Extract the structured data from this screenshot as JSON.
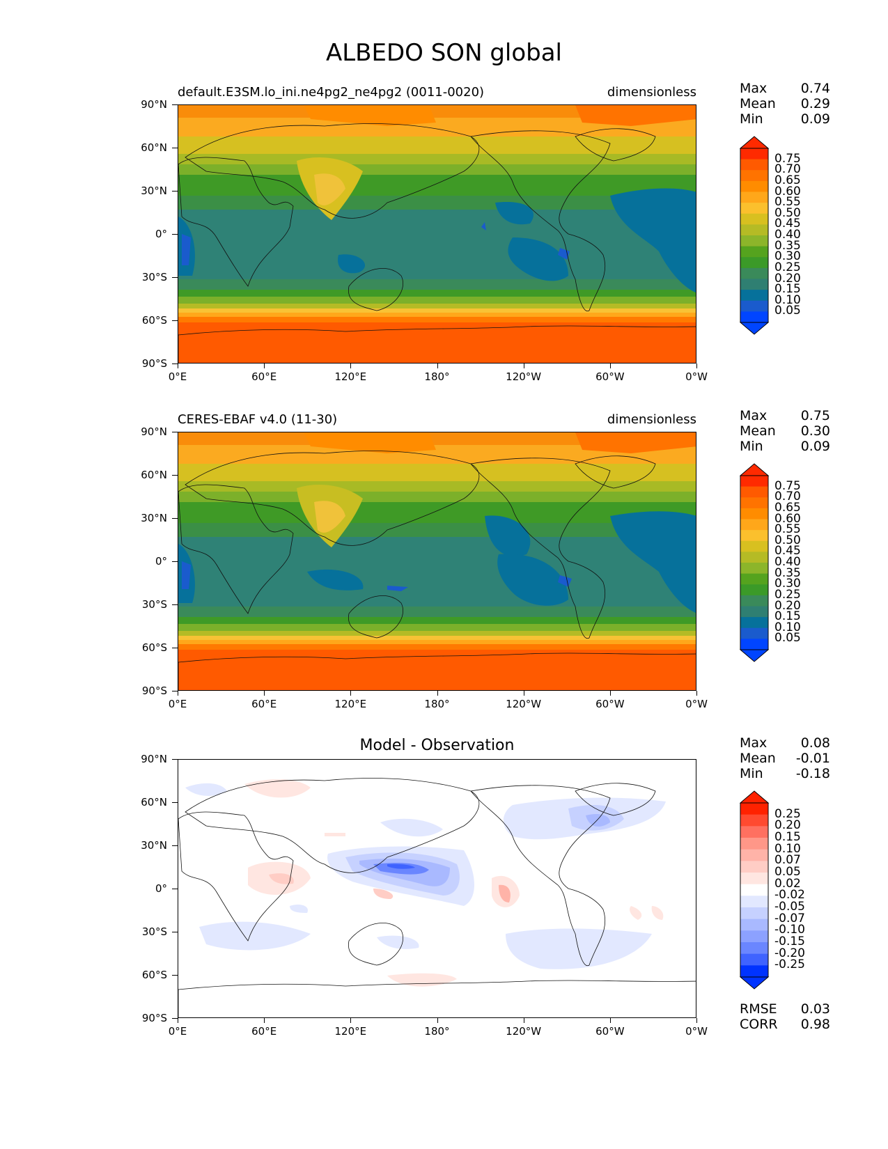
{
  "title": "ALBEDO SON global",
  "xticks": [
    "0°E",
    "60°E",
    "120°E",
    "180°",
    "120°W",
    "60°W",
    "0°W"
  ],
  "yticks": [
    "90°N",
    "60°N",
    "30°N",
    "0°",
    "30°S",
    "60°S",
    "90°S"
  ],
  "panels": [
    {
      "id": "model",
      "title_left": "default.E3SM.lo_ini.ne4pg2_ne4pg2 (0011-0020)",
      "title_right": "dimensionless",
      "title_center": "",
      "stats": [
        {
          "label": "Max",
          "value": "0.74"
        },
        {
          "label": "Mean",
          "value": "0.29"
        },
        {
          "label": "Min",
          "value": "0.09"
        }
      ],
      "extra_stats": [],
      "colorbar_labels": [
        "0.75",
        "0.70",
        "0.65",
        "0.60",
        "0.55",
        "0.50",
        "0.45",
        "0.40",
        "0.35",
        "0.30",
        "0.25",
        "0.20",
        "0.15",
        "0.10",
        "0.05"
      ],
      "colorbar_colors": [
        "#ff2a00",
        "#ff5a00",
        "#ff7300",
        "#ff8c00",
        "#ffa71a",
        "#fbc02d",
        "#d8c020",
        "#b5bb25",
        "#8cb52a",
        "#55a31e",
        "#3b9a28",
        "#3a8a5a",
        "#2f7f72",
        "#06719b",
        "#1a5bcd",
        "#0045ff"
      ]
    },
    {
      "id": "obs",
      "title_left": "CERES-EBAF v4.0 (11-30)",
      "title_right": "dimensionless",
      "title_center": "",
      "stats": [
        {
          "label": "Max",
          "value": "0.75"
        },
        {
          "label": "Mean",
          "value": "0.30"
        },
        {
          "label": "Min",
          "value": "0.09"
        }
      ],
      "extra_stats": [],
      "colorbar_labels": [
        "0.75",
        "0.70",
        "0.65",
        "0.60",
        "0.55",
        "0.50",
        "0.45",
        "0.40",
        "0.35",
        "0.30",
        "0.25",
        "0.20",
        "0.15",
        "0.10",
        "0.05"
      ],
      "colorbar_colors": [
        "#ff2a00",
        "#ff5a00",
        "#ff7300",
        "#ff8c00",
        "#ffa71a",
        "#fbc02d",
        "#d8c020",
        "#b5bb25",
        "#8cb52a",
        "#55a31e",
        "#3b9a28",
        "#3a8a5a",
        "#2f7f72",
        "#06719b",
        "#1a5bcd",
        "#0045ff"
      ]
    },
    {
      "id": "diff",
      "title_left": "",
      "title_right": "",
      "title_center": "Model - Observation",
      "stats": [
        {
          "label": "Max",
          "value": "0.08"
        },
        {
          "label": "Mean",
          "value": "-0.01"
        },
        {
          "label": "Min",
          "value": "-0.18"
        }
      ],
      "extra_stats": [
        {
          "label": "RMSE",
          "value": "0.03"
        },
        {
          "label": "CORR",
          "value": "0.98"
        }
      ],
      "colorbar_labels": [
        "0.25",
        "0.20",
        "0.15",
        "0.10",
        "0.07",
        "0.05",
        "0.02",
        "-0.02",
        "-0.05",
        "-0.07",
        "-0.10",
        "-0.15",
        "-0.20",
        "-0.25"
      ],
      "colorbar_colors": [
        "#ff2200",
        "#ff4a30",
        "#ff7060",
        "#ff9788",
        "#ffb3a8",
        "#ffcdc5",
        "#ffe6e1",
        "#ffffff",
        "#e2e8ff",
        "#c6d1ff",
        "#a9b9ff",
        "#8ca1ff",
        "#6a86ff",
        "#3f63ff",
        "#0033ff"
      ]
    }
  ]
}
